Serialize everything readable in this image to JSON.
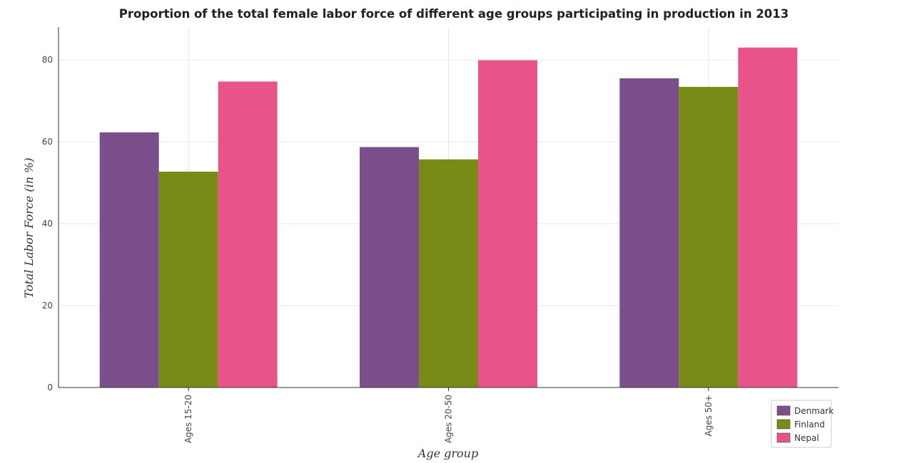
{
  "chart_data": {
    "type": "bar",
    "title": "Proportion of the total female labor force of different age groups participating in production in 2013",
    "xlabel": "Age group",
    "ylabel": "Total Labor Force (in %)",
    "categories": [
      "Ages 15-20",
      "Ages 20-50",
      "Ages 50+"
    ],
    "ylim": [
      0,
      88
    ],
    "yticks": [
      0,
      20,
      40,
      60,
      80
    ],
    "grid": true,
    "legend_position": "bottom-right",
    "series": [
      {
        "name": "Denmark",
        "color": "#7b4f8c",
        "values": [
          62.3,
          58.7,
          75.5
        ]
      },
      {
        "name": "Finland",
        "color": "#7a8a16",
        "values": [
          52.7,
          55.7,
          73.4
        ]
      },
      {
        "name": "Nepal",
        "color": "#e8538a",
        "values": [
          74.7,
          79.9,
          83.0
        ]
      }
    ]
  }
}
